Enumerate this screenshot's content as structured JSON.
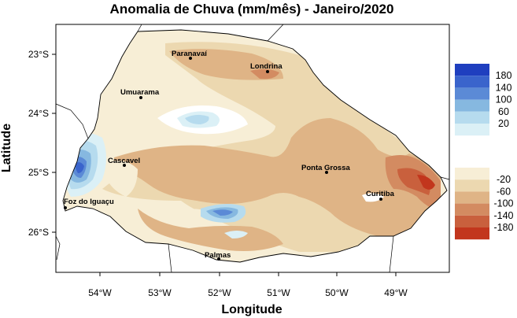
{
  "map": {
    "title": "Anomalia de Chuva (mm/mês) - Janeiro/2020",
    "xlabel": "Longitude",
    "ylabel": "Latitude",
    "lon_ticks": [
      "54°W",
      "53°W",
      "52°W",
      "51°W",
      "50°W",
      "49°W"
    ],
    "lat_ticks": [
      "23°S",
      "24°S",
      "25°S",
      "26°S"
    ],
    "cities": [
      {
        "name": "Paranavaí"
      },
      {
        "name": "Londrina"
      },
      {
        "name": "Umuarama"
      },
      {
        "name": "Cascavel"
      },
      {
        "name": "Ponta Grossa"
      },
      {
        "name": "Foz do Iguaçu"
      },
      {
        "name": "Curitiba"
      },
      {
        "name": "Palmas"
      }
    ]
  },
  "legend": {
    "positive_levels": [
      {
        "label": "180",
        "color": "#1f3fbf"
      },
      {
        "label": "140",
        "color": "#3a64cc"
      },
      {
        "label": "100",
        "color": "#5b8ad6"
      },
      {
        "label": "60",
        "color": "#86b8e0"
      },
      {
        "label": "20",
        "color": "#b6dbee"
      },
      {
        "label": "",
        "color": "#dbf0f6"
      }
    ],
    "negative_levels": [
      {
        "label": "-20",
        "color": "#f7eed6"
      },
      {
        "label": "-60",
        "color": "#ecd8b0"
      },
      {
        "label": "-100",
        "color": "#dfb486"
      },
      {
        "label": "-140",
        "color": "#d38b61"
      },
      {
        "label": "-180",
        "color": "#c9603d"
      },
      {
        "label": "",
        "color": "#c2361d"
      }
    ]
  }
}
